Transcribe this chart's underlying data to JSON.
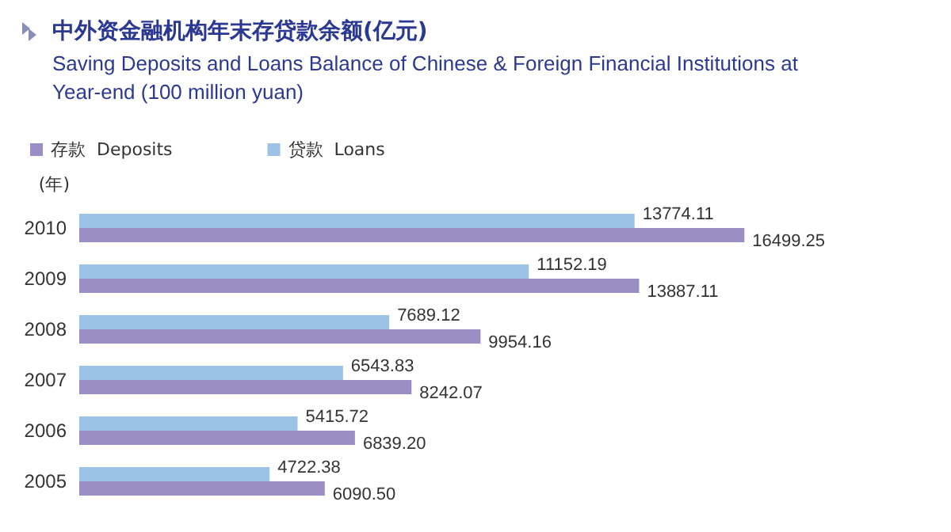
{
  "chart_data": {
    "type": "bar",
    "orientation": "horizontal",
    "title": "中外资金融机构年末存贷款余额(亿元)",
    "subtitle": "Saving Deposits and Loans Balance of Chinese & Foreign Financial Institutions at Year-end (100 million yuan)",
    "ylabel": "(年)",
    "categories": [
      "2010",
      "2009",
      "2008",
      "2007",
      "2006",
      "2005"
    ],
    "series": [
      {
        "name": "存款  Deposits",
        "color": "#9b8ec4",
        "values": [
          16499.25,
          13887.11,
          9954.16,
          8242.07,
          6839.2,
          6090.5
        ],
        "value_labels": [
          "16499.25",
          "13887.11",
          "9954.16",
          "8242.07",
          "6839.20",
          "6090.50"
        ]
      },
      {
        "name": "贷款  Loans",
        "color": "#9cc3e6",
        "values": [
          13774.11,
          11152.19,
          7689.12,
          6543.83,
          5415.72,
          4722.38
        ],
        "value_labels": [
          "13774.11",
          "11152.19",
          "7689.12",
          "6543.83",
          "5415.72",
          "4722.38"
        ]
      }
    ],
    "legend": "top left",
    "tick_labels": "y"
  }
}
